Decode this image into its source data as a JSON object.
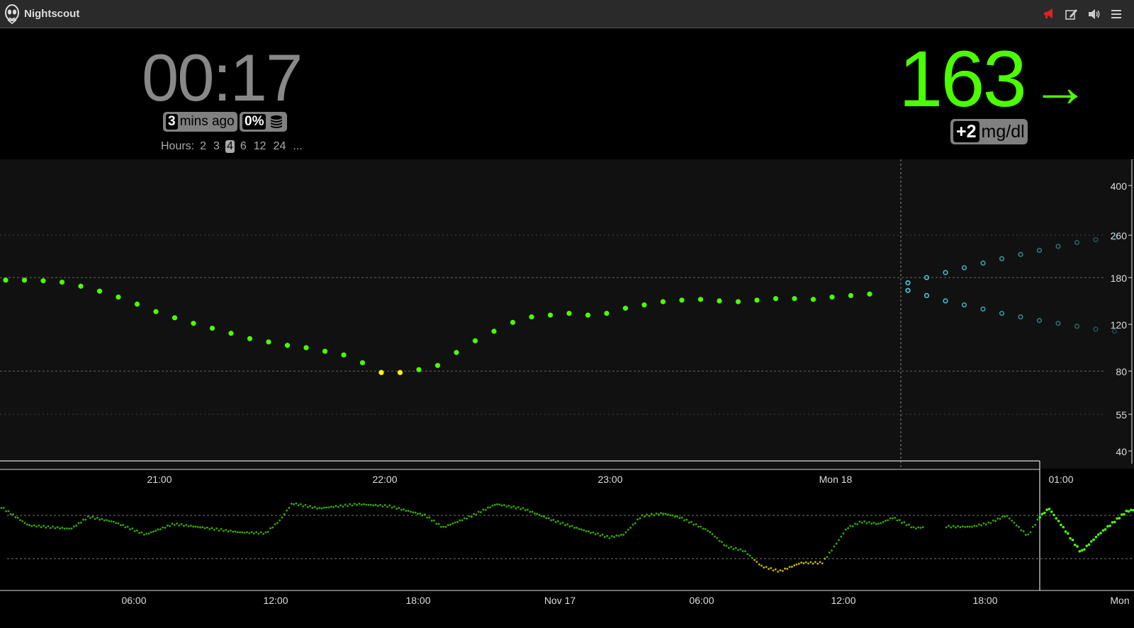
{
  "app": {
    "title": "Nightscout"
  },
  "header": {
    "icons": [
      "alarm-icon",
      "edit-icon",
      "volume-icon",
      "menu-icon"
    ]
  },
  "status": {
    "clock": "00:17",
    "last_reading": {
      "value": "3",
      "unit": "mins ago"
    },
    "battery": "0%",
    "hours": {
      "label": "Hours:",
      "options": [
        "2",
        "3",
        "4",
        "6",
        "12",
        "24",
        "..."
      ],
      "selected": "4"
    }
  },
  "bg": {
    "value": "163",
    "direction": "→",
    "delta": "+2",
    "units": "mg/dl"
  },
  "colors": {
    "in_range": "#4cff00",
    "low_warn": "#ffff00",
    "forecast": "#4ad3e6",
    "focus_line": "#33aa00",
    "focus_warn": "#c8b600"
  },
  "chart_data": [
    {
      "type": "scatter",
      "name": "main",
      "x_ticks": [
        "21:00",
        "22:00",
        "23:00",
        "Mon 18",
        "01:00"
      ],
      "y_ticks": [
        "400",
        "260",
        "180",
        "120",
        "80",
        "55",
        "40"
      ],
      "ylim": [
        40,
        400
      ],
      "y_scale": "log",
      "target_lines": [
        180,
        80
      ],
      "points": [
        176,
        176,
        175,
        173,
        167,
        160,
        152,
        143,
        134,
        127,
        121,
        116,
        111,
        106,
        103,
        100,
        98,
        95,
        92,
        86,
        79,
        79,
        81,
        84,
        94,
        104,
        113,
        122,
        128,
        130,
        132,
        130,
        132,
        138,
        142,
        146,
        148,
        149,
        147,
        146,
        148,
        150,
        150,
        149,
        152,
        154,
        156
      ],
      "forecast_upper": [
        172,
        180,
        188,
        196,
        204,
        212,
        220,
        228,
        236,
        244,
        250,
        254
      ],
      "forecast_lower": [
        161,
        154,
        147,
        142,
        137,
        132,
        128,
        124,
        121,
        118,
        115,
        113
      ]
    },
    {
      "type": "line",
      "name": "focus",
      "x_ticks": [
        "06:00",
        "12:00",
        "18:00",
        "Nov 17",
        "06:00",
        "12:00",
        "18:00",
        "Mon"
      ]
    }
  ]
}
